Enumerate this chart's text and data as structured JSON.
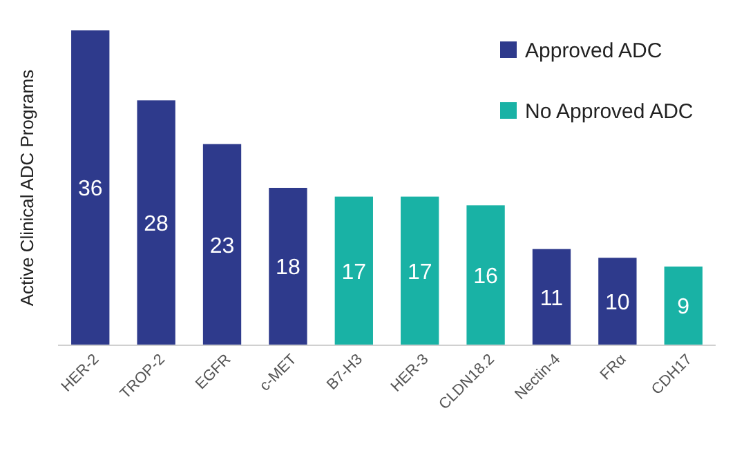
{
  "chart_data": {
    "type": "bar",
    "ylabel": "Active Clinical ADC Programs",
    "categories": [
      "HER-2",
      "TROP-2",
      "EGFR",
      "c-MET",
      "B7-H3",
      "HER-3",
      "CLDN18.2",
      "Nectin-4",
      "FRα",
      "CDH17"
    ],
    "series": [
      {
        "name": "Approved ADC",
        "color": "#2e3a8c",
        "values": [
          36,
          28,
          23,
          18,
          null,
          null,
          null,
          11,
          10,
          null
        ]
      },
      {
        "name": "No Approved ADC",
        "color": "#19b2a5",
        "values": [
          null,
          null,
          null,
          null,
          17,
          17,
          16,
          null,
          null,
          9
        ]
      }
    ],
    "data_labels": true,
    "legend": "top right"
  }
}
